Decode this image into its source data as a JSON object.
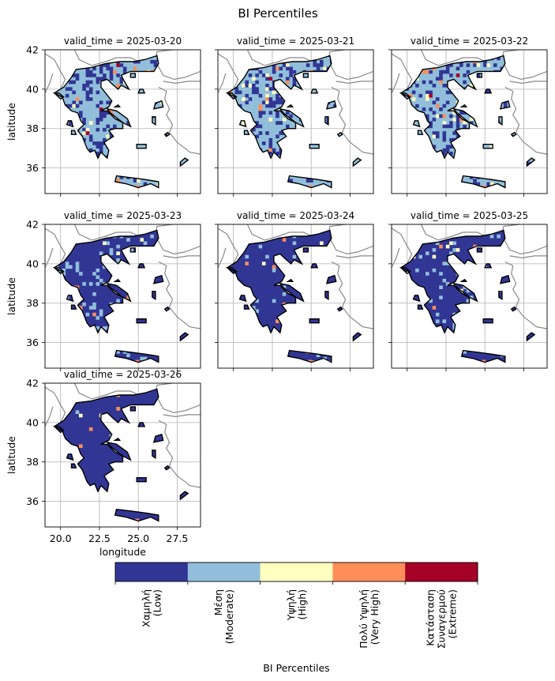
{
  "figure": {
    "title": "BI Percentiles",
    "ylabel": "latitude",
    "xlabel": "longitude"
  },
  "chart_data": {
    "type": "heatmap",
    "title": "BI Percentiles",
    "xlabel": "longitude",
    "ylabel": "latitude",
    "xlim": [
      19.0,
      29.0
    ],
    "ylim": [
      34.7,
      42.0
    ],
    "xticks": [
      "20.0",
      "22.5",
      "25.0",
      "27.5"
    ],
    "xtick_values": [
      20.0,
      22.5,
      25.0,
      27.5
    ],
    "yticks": [
      "36",
      "38",
      "40",
      "42"
    ],
    "ytick_values": [
      36,
      38,
      40,
      42
    ],
    "grid": true,
    "panels": [
      {
        "title": "valid_time = 2025-03-20",
        "dominant_class": "Μέση (Moderate)",
        "class_shares": [
          0.45,
          0.45,
          0.05,
          0.04,
          0.01
        ]
      },
      {
        "title": "valid_time = 2025-03-21",
        "dominant_class": "Μέση (Moderate)",
        "class_shares": [
          0.42,
          0.47,
          0.06,
          0.04,
          0.01
        ]
      },
      {
        "title": "valid_time = 2025-03-22",
        "dominant_class": "Μέση (Moderate)",
        "class_shares": [
          0.4,
          0.49,
          0.06,
          0.04,
          0.01
        ]
      },
      {
        "title": "valid_time = 2025-03-23",
        "dominant_class": "Χαμηλή (Low)",
        "class_shares": [
          0.72,
          0.23,
          0.03,
          0.02,
          0.0
        ]
      },
      {
        "title": "valid_time = 2025-03-24",
        "dominant_class": "Χαμηλή (Low)",
        "class_shares": [
          0.88,
          0.08,
          0.02,
          0.02,
          0.0
        ]
      },
      {
        "title": "valid_time = 2025-03-25",
        "dominant_class": "Χαμηλή (Low)",
        "class_shares": [
          0.8,
          0.15,
          0.03,
          0.02,
          0.0
        ]
      },
      {
        "title": "valid_time = 2025-03-26",
        "dominant_class": "Χαμηλή (Low)",
        "class_shares": [
          0.95,
          0.02,
          0.02,
          0.01,
          0.0
        ]
      }
    ],
    "colorbar": {
      "label": "BI Percentiles",
      "classes": [
        {
          "lines": [
            "Χαμηλή",
            "(Low)"
          ],
          "color": "#313695"
        },
        {
          "lines": [
            "Μέση",
            "(Moderate)"
          ],
          "color": "#91bfdb"
        },
        {
          "lines": [
            "Υψηλή",
            "(High)"
          ],
          "color": "#ffffbf"
        },
        {
          "lines": [
            "Πολύ Υψηλή",
            "(Very High)"
          ],
          "color": "#fc8d59"
        },
        {
          "lines": [
            "Κατάσταση",
            "Συναγερμού",
            "(Extreme)"
          ],
          "color": "#a50026"
        }
      ]
    }
  },
  "colors": {
    "land_outline": "#000000",
    "neighbor_borders": "#888888",
    "grid": "#b0b0b0"
  }
}
